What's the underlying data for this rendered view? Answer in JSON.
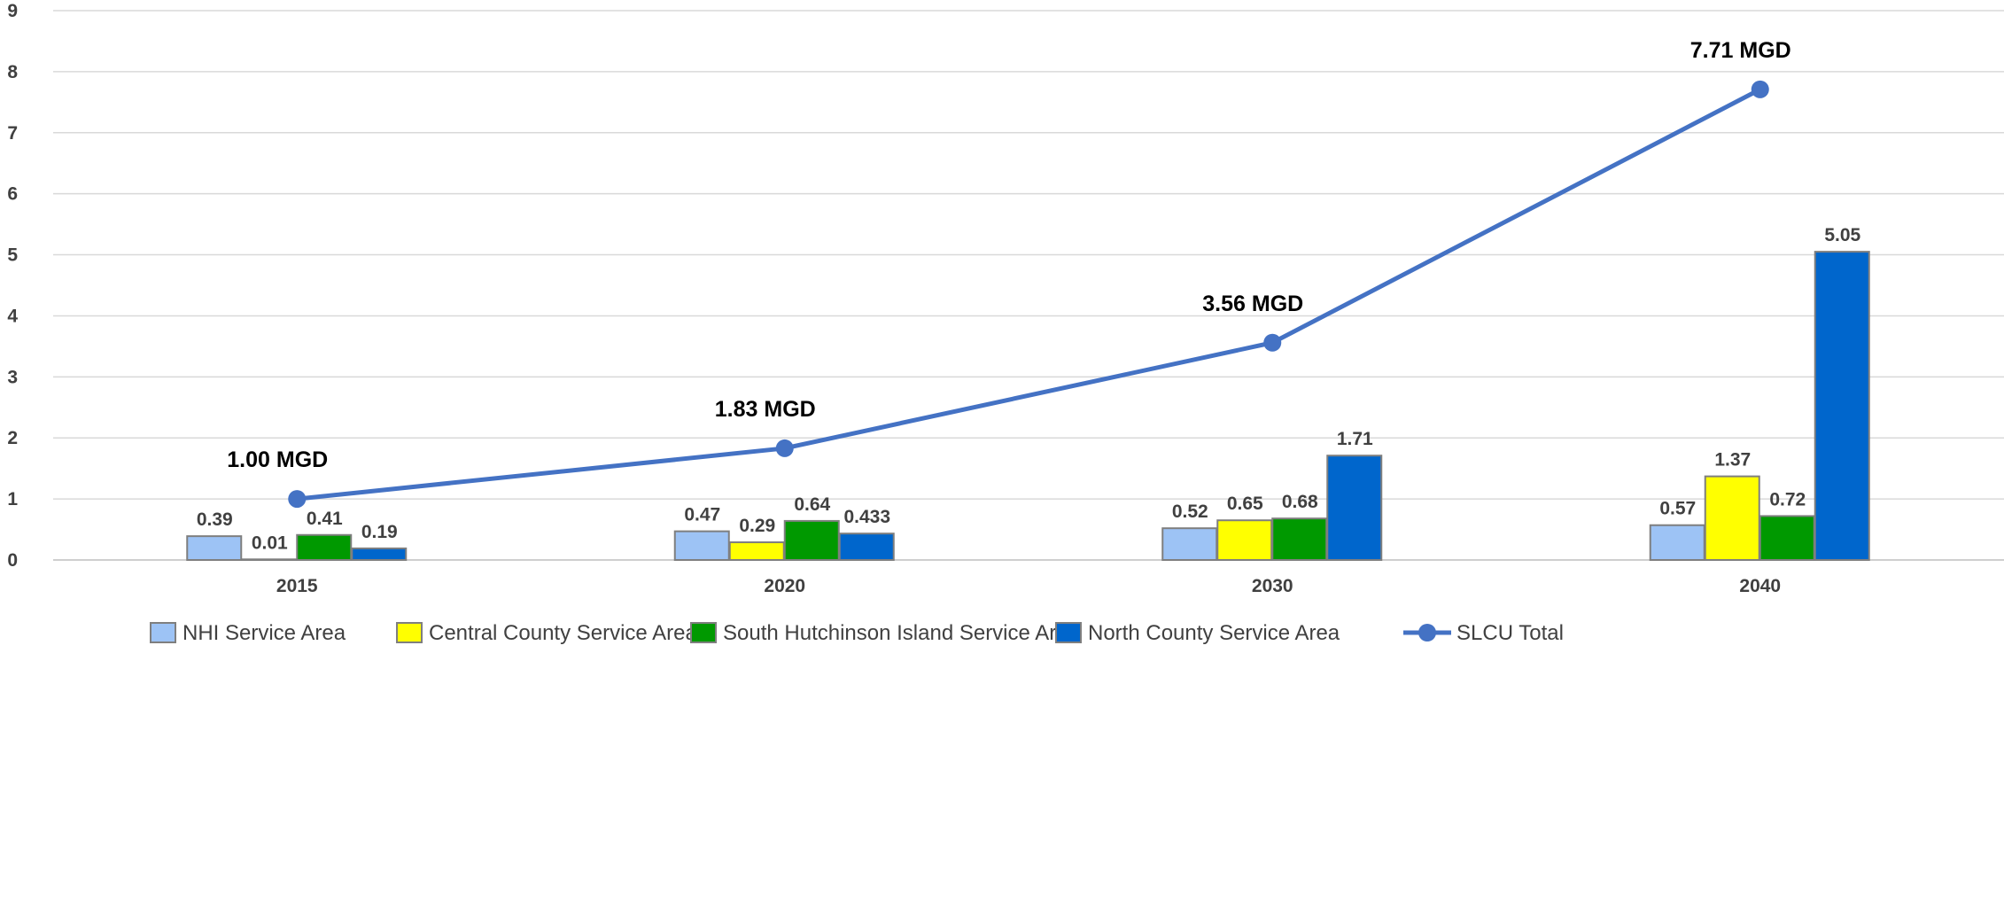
{
  "chart_data": {
    "type": "bar",
    "categories": [
      "2015",
      "2020",
      "2030",
      "2040"
    ],
    "series": [
      {
        "name": "NHI Service Area",
        "type": "bar",
        "color": "#9DC3F5",
        "values": [
          0.39,
          0.47,
          0.52,
          0.57
        ],
        "labels": [
          "0.39",
          "0.47",
          "0.52",
          "0.57"
        ]
      },
      {
        "name": "Central County Service Area",
        "type": "bar",
        "color": "#FFFF00",
        "values": [
          0.01,
          0.29,
          0.65,
          1.37
        ],
        "labels": [
          "0.01",
          "0.29",
          "0.65",
          "1.37"
        ]
      },
      {
        "name": "South Hutchinson Island Service Area",
        "type": "bar",
        "color": "#009900",
        "values": [
          0.41,
          0.64,
          0.68,
          0.72
        ],
        "labels": [
          "0.41",
          "0.64",
          "0.68",
          "0.72"
        ]
      },
      {
        "name": "North County Service Area",
        "type": "bar",
        "color": "#0066CC",
        "values": [
          0.19,
          0.433,
          1.71,
          5.05
        ],
        "labels": [
          "0.19",
          "0.433",
          "1.71",
          "5.05"
        ]
      },
      {
        "name": "SLCU Total",
        "type": "line",
        "color": "#4472C4",
        "values": [
          1.0,
          1.83,
          3.56,
          7.71
        ],
        "labels": [
          "1.00 MGD",
          "1.83 MGD",
          "3.56 MGD",
          "7.71 MGD"
        ]
      }
    ],
    "ylim": [
      0,
      9
    ],
    "yticks": [
      "0",
      "1",
      "2",
      "3",
      "4",
      "5",
      "6",
      "7",
      "8",
      "9"
    ],
    "grid": true,
    "legend_position": "bottom",
    "title": "",
    "xlabel": "",
    "ylabel": ""
  }
}
